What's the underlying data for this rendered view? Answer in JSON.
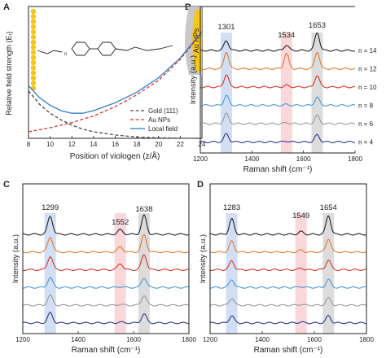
{
  "chart_data": [
    {
      "panel": "A",
      "type": "line",
      "xlabel": "Position of viologen (z/Å)",
      "ylabel": "Relative field strength (Eᵣ)",
      "xlim": [
        8,
        24
      ],
      "ylim": [
        0,
        1
      ],
      "xticks": [
        "8",
        "10",
        "12",
        "14",
        "16",
        "18",
        "20",
        "22",
        "24"
      ],
      "legend_position": "bottom-right",
      "annotation": "Au NPs",
      "n_label": "n",
      "series": [
        {
          "name": "Gold (111)",
          "style": "dashed",
          "color": "#4a4a4a",
          "x": [
            8,
            9,
            10,
            11,
            12,
            13,
            14,
            16,
            18,
            20,
            22,
            24
          ],
          "y": [
            0.36,
            0.26,
            0.19,
            0.14,
            0.1,
            0.07,
            0.05,
            0.025,
            0.01,
            0.004,
            0.001,
            0.0
          ]
        },
        {
          "name": "Au NPs",
          "style": "dashed",
          "color": "#d9342b",
          "x": [
            8,
            10,
            12,
            14,
            16,
            18,
            20,
            22,
            24
          ],
          "y": [
            0.05,
            0.08,
            0.12,
            0.17,
            0.24,
            0.33,
            0.44,
            0.6,
            0.8
          ]
        },
        {
          "name": "Local field",
          "style": "solid",
          "color": "#2f7cc4",
          "x": [
            8,
            9,
            10,
            11,
            12,
            13,
            14,
            16,
            18,
            20,
            22,
            24
          ],
          "y": [
            0.4,
            0.31,
            0.25,
            0.21,
            0.19,
            0.19,
            0.21,
            0.27,
            0.35,
            0.46,
            0.61,
            0.81
          ]
        }
      ]
    },
    {
      "panel": "B",
      "type": "line",
      "xlabel": "Raman shift (cm⁻¹)",
      "ylabel": "Intensity (a.u.)",
      "xlim": [
        1200,
        1800
      ],
      "xticks": [
        "1200",
        "1400",
        "1600",
        "1800"
      ],
      "peaks": [
        1301,
        1534,
        1653
      ],
      "peak_labels": [
        "1301",
        "1534",
        "1653"
      ],
      "series": [
        {
          "name": "n = 14",
          "color": "#222222",
          "amps": [
            0.55,
            0.3,
            1.0
          ]
        },
        {
          "name": "n = 12",
          "color": "#e07a2e",
          "amps": [
            0.95,
            0.85,
            0.95
          ]
        },
        {
          "name": "n = 10",
          "color": "#d9342b",
          "amps": [
            0.7,
            0.1,
            0.65
          ]
        },
        {
          "name": "n = 8",
          "color": "#4a9ad6",
          "amps": [
            0.55,
            0.05,
            0.45
          ]
        },
        {
          "name": "n = 6",
          "color": "#9a9a9a",
          "amps": [
            0.55,
            0.05,
            0.45
          ]
        },
        {
          "name": "n = 4",
          "color": "#2b3a8c",
          "amps": [
            0.45,
            0.05,
            0.4
          ]
        }
      ]
    },
    {
      "panel": "C",
      "type": "line",
      "xlabel": "Raman shift (cm⁻¹)",
      "ylabel": "Intensity (a.u.)",
      "xlim": [
        1200,
        1800
      ],
      "xticks": [
        "1200",
        "1400",
        "1600",
        "1800"
      ],
      "peaks": [
        1299,
        1552,
        1638
      ],
      "peak_labels": [
        "1299",
        "1552",
        "1638"
      ],
      "series": [
        {
          "color": "#222222",
          "amps": [
            1.0,
            0.25,
            1.05
          ]
        },
        {
          "color": "#e07a2e",
          "amps": [
            0.85,
            0.3,
            0.95
          ]
        },
        {
          "color": "#d9342b",
          "amps": [
            0.75,
            0.35,
            0.85
          ]
        },
        {
          "color": "#4a9ad6",
          "amps": [
            0.55,
            0.05,
            0.55
          ]
        },
        {
          "color": "#9a9a9a",
          "amps": [
            0.55,
            0.05,
            0.55
          ]
        },
        {
          "color": "#2b3a8c",
          "amps": [
            0.55,
            0.05,
            0.5
          ]
        }
      ]
    },
    {
      "panel": "D",
      "type": "line",
      "xlabel": "Raman shift (cm⁻¹)",
      "ylabel": "Intensity (a.u.)",
      "xlim": [
        1200,
        1800
      ],
      "xticks": [
        "1200",
        "1400",
        "1600",
        "1800"
      ],
      "peaks": [
        1283,
        1549,
        1654
      ],
      "peak_labels": [
        "1283",
        "1549",
        "1654"
      ],
      "series": [
        {
          "color": "#222222",
          "amps": [
            0.85,
            0.15,
            1.05
          ]
        },
        {
          "color": "#e07a2e",
          "amps": [
            0.6,
            0.1,
            0.75
          ]
        },
        {
          "color": "#d9342b",
          "amps": [
            0.5,
            0.08,
            0.55
          ]
        },
        {
          "color": "#4a9ad6",
          "amps": [
            0.45,
            0.05,
            0.45
          ]
        },
        {
          "color": "#9a9a9a",
          "amps": [
            0.4,
            0.05,
            0.4
          ]
        },
        {
          "color": "#2b3a8c",
          "amps": [
            0.4,
            0.05,
            0.4
          ]
        }
      ]
    }
  ],
  "colors": {
    "band_blue": "#c9d8f2",
    "band_pink": "#f8d0d3",
    "band_gray": "#d6d6d6",
    "gold": "#f5c518"
  }
}
